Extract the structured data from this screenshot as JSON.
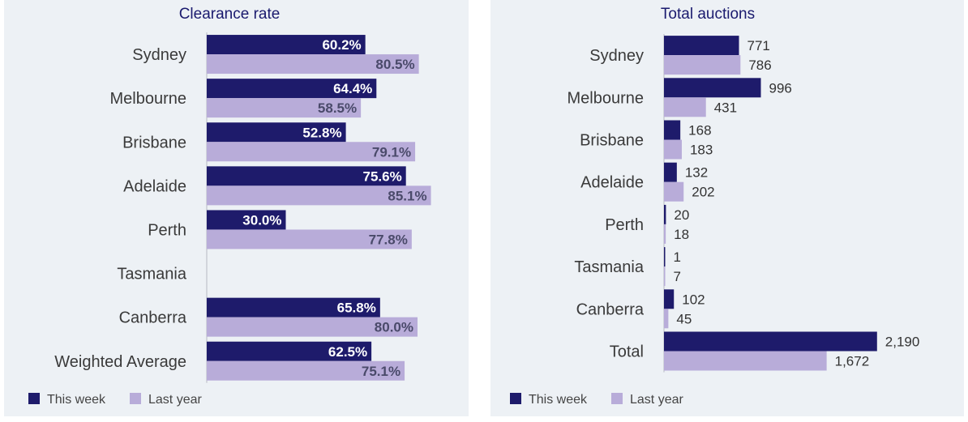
{
  "colors": {
    "this_week": "#1e1b6b",
    "last_year": "#b8acd9",
    "axis": "#c9ccd4"
  },
  "chart_data": [
    {
      "type": "bar",
      "title": "Clearance rate",
      "orientation": "horizontal",
      "categories": [
        "Sydney",
        "Melbourne",
        "Brisbane",
        "Adelaide",
        "Perth",
        "Tasmania",
        "Canberra",
        "Weighted Average"
      ],
      "series": [
        {
          "name": "This week",
          "values": [
            60.2,
            64.4,
            52.8,
            75.6,
            30.0,
            null,
            65.8,
            62.5
          ],
          "labels": [
            "60.2%",
            "64.4%",
            "52.8%",
            "75.6%",
            "30.0%",
            "",
            "65.8%",
            "62.5%"
          ]
        },
        {
          "name": "Last year",
          "values": [
            80.5,
            58.5,
            79.1,
            85.1,
            77.8,
            null,
            80.0,
            75.1
          ],
          "labels": [
            "80.5%",
            "58.5%",
            "79.1%",
            "85.1%",
            "77.8%",
            "",
            "80.0%",
            "75.1%"
          ]
        }
      ],
      "xlim": [
        0,
        100
      ],
      "legend": "bottom-left"
    },
    {
      "type": "bar",
      "title": "Total auctions",
      "orientation": "horizontal",
      "categories": [
        "Sydney",
        "Melbourne",
        "Brisbane",
        "Adelaide",
        "Perth",
        "Tasmania",
        "Canberra",
        "Total"
      ],
      "series": [
        {
          "name": "This week",
          "values": [
            771,
            996,
            168,
            132,
            20,
            1,
            102,
            2190
          ],
          "labels": [
            "771",
            "996",
            "168",
            "132",
            "20",
            "1",
            "102",
            "2,190"
          ]
        },
        {
          "name": "Last year",
          "values": [
            786,
            431,
            183,
            202,
            18,
            7,
            45,
            1672
          ],
          "labels": [
            "786",
            "431",
            "183",
            "202",
            "18",
            "7",
            "45",
            "1,672"
          ]
        }
      ],
      "xlim": [
        0,
        2600
      ],
      "legend": "bottom-left"
    }
  ]
}
